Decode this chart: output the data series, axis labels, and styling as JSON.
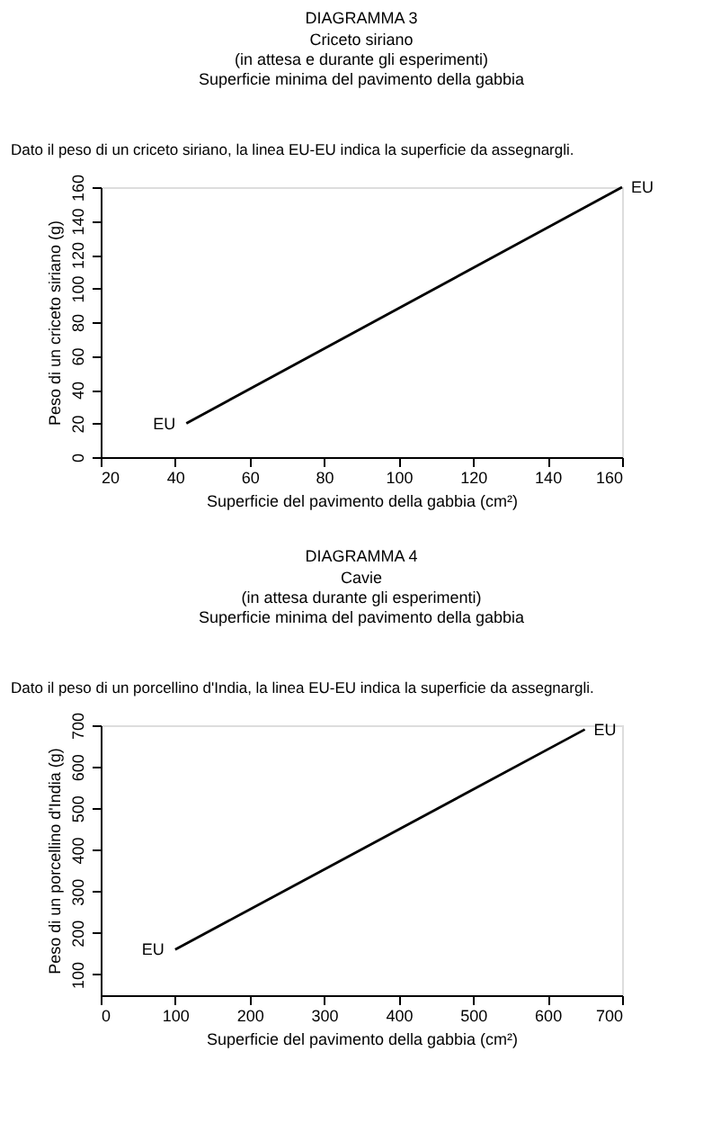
{
  "chart_data": [
    {
      "type": "line",
      "title": "DIAGRAMMA 3",
      "subtitle": "Criceto siriano\n(in attesa e durante gli esperimenti)\nSuperficie minima del pavimento della gabbia",
      "xlabel": "Superficie del pavimento della gabbia (cm²)",
      "ylabel": "Peso di un criceto siriano (g)",
      "x": [
        43,
        160
      ],
      "series": [
        {
          "color": "#000000",
          "values": [
            20,
            160
          ]
        }
      ],
      "xlim": [
        20,
        160
      ],
      "xticks": [
        20,
        40,
        60,
        80,
        100,
        120,
        140,
        160
      ],
      "ylim": [
        0,
        160
      ],
      "yticks": [
        0,
        20,
        40,
        60,
        80,
        100,
        120,
        140,
        160
      ],
      "grid": false,
      "marker": "none",
      "line_style": "solid",
      "annotations": [
        "Dato il peso di un criceto siriano, la linea EU-EU indica la superficie da assegnargli.",
        {
          "text": "EU",
          "x": 43,
          "y": 20
        },
        {
          "text": "EU",
          "x": 160,
          "y": 160
        }
      ]
    },
    {
      "type": "line",
      "title": "DIAGRAMMA 4",
      "subtitle": "Cavie\n(in attesa durante gli esperimenti)\nSuperficie minima del pavimento della gabbia",
      "xlabel": "Superficie del pavimento della gabbia (cm²)",
      "ylabel": "Peso di un porcellino d'India (g)",
      "x": [
        100,
        650
      ],
      "series": [
        {
          "color": "#000000",
          "values": [
            160,
            690
          ]
        }
      ],
      "xlim": [
        0,
        700
      ],
      "xticks": [
        0,
        100,
        200,
        300,
        400,
        500,
        600,
        700
      ],
      "ylim": [
        50,
        700
      ],
      "yticks": [
        100,
        200,
        300,
        400,
        500,
        600,
        700
      ],
      "grid": false,
      "marker": "none",
      "line_style": "solid",
      "annotations": [
        "Dato il peso di un porcellino d'India, la linea EU-EU indica la superficie da assegnargli.",
        {
          "text": "EU",
          "x": 100,
          "y": 160
        },
        {
          "text": "EU",
          "x": 650,
          "y": 690
        }
      ]
    }
  ]
}
